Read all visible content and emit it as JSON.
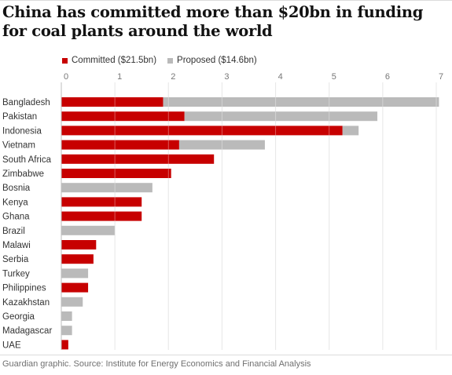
{
  "title": "China has committed more than $20bn in funding for coal plants around the world",
  "source": "Guardian graphic. Source: Institute for Energy Economics and Financial Analysis",
  "colors": {
    "committed": "#c70000",
    "proposed": "#bababa",
    "gridline": "#dcdcdc"
  },
  "chart_data": {
    "type": "bar",
    "orientation": "horizontal",
    "stacked": true,
    "title": "China has committed more than $20bn in funding for coal plants around the world",
    "xlabel": "",
    "ylabel": "",
    "xlim": [
      0,
      7
    ],
    "x_ticks": [
      0,
      1,
      2,
      3,
      4,
      5,
      6,
      7
    ],
    "x_axis_position": "top",
    "grid": true,
    "legend_position": "top-left",
    "categories": [
      "Bangladesh",
      "Pakistan",
      "Indonesia",
      "Vietnam",
      "South Africa",
      "Zimbabwe",
      "Bosnia",
      "Kenya",
      "Ghana",
      "Brazil",
      "Malawi",
      "Serbia",
      "Turkey",
      "Philippines",
      "Kazakhstan",
      "Georgia",
      "Madagascar",
      "UAE"
    ],
    "series": [
      {
        "name": "Committed ($21.5bn)",
        "values": [
          1.9,
          2.3,
          5.25,
          2.2,
          2.85,
          2.05,
          0,
          1.5,
          1.5,
          0,
          0.65,
          0.6,
          0,
          0.5,
          0,
          0,
          0,
          0.13
        ]
      },
      {
        "name": "Proposed ($14.6bn)",
        "values": [
          5.15,
          3.6,
          0.3,
          1.6,
          0,
          0,
          1.7,
          0,
          0,
          1.0,
          0,
          0,
          0.5,
          0,
          0.4,
          0.2,
          0.2,
          0
        ]
      }
    ]
  }
}
